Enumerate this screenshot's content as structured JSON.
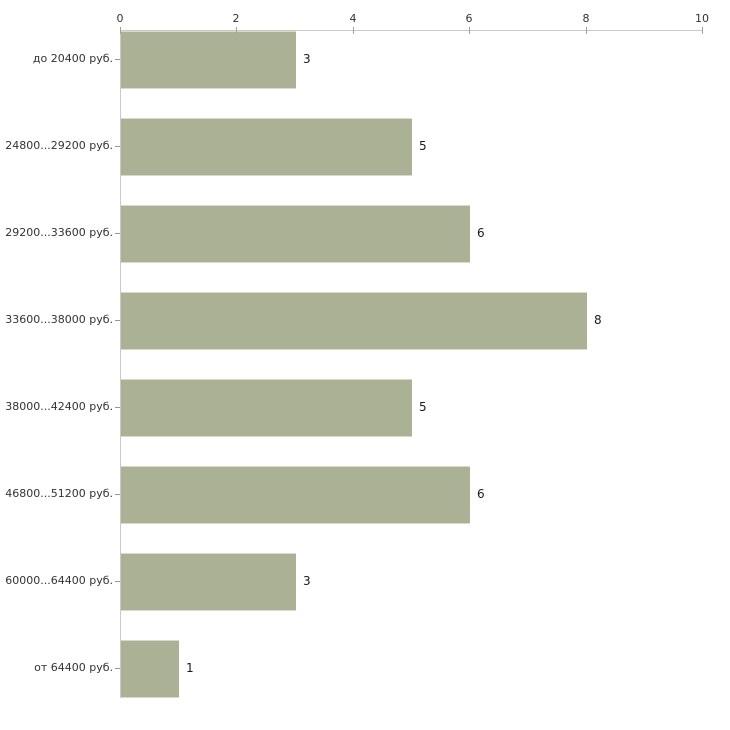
{
  "chart_data": {
    "type": "bar",
    "orientation": "horizontal",
    "title": "",
    "xlabel": "",
    "ylabel": "",
    "categories": [
      "до 20400 руб.",
      "24800...29200 руб.",
      "29200...33600 руб.",
      "33600...38000 руб.",
      "38000...42400 руб.",
      "46800...51200 руб.",
      "60000...64400 руб.",
      "от 64400 руб."
    ],
    "values": [
      3,
      5,
      6,
      8,
      5,
      6,
      3,
      1
    ],
    "x_ticks": [
      0,
      2,
      4,
      6,
      8,
      10
    ],
    "xlim": [
      0,
      10
    ],
    "value_labels_shown": true,
    "grid": false,
    "legend_position": "none",
    "colors": {
      "bar_fill": "#abb194",
      "bar_edge": "#d8dbc8",
      "axis_line": "#c9c9c9",
      "x_tick_mark": "#a6a878",
      "category_tick_mark": "#99998a",
      "text": "#333333",
      "value_text": "#1a1a1a",
      "background": "#ffffff"
    }
  }
}
